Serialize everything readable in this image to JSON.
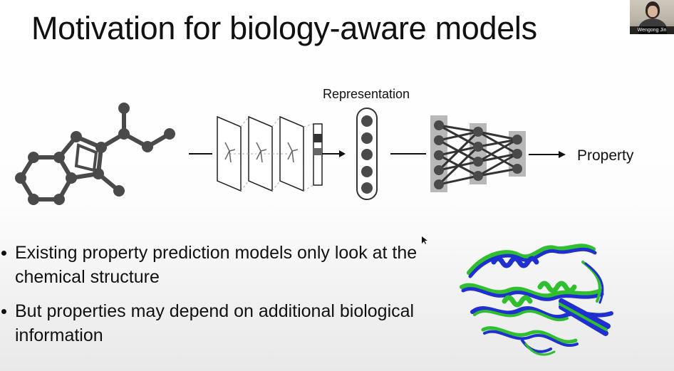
{
  "slide": {
    "title": "Motivation for biology-aware models",
    "representation_label": "Representation",
    "property_label": "Property",
    "bullets": [
      "Existing property prediction models only look at the chemical structure",
      "But properties may depend on additional biological information"
    ]
  },
  "participant": {
    "name": "Wengong Jin"
  },
  "colors": {
    "node": "#4a4a4a",
    "layer_box": "#b8b8b8",
    "protein_green": "#2fbf2f",
    "protein_blue": "#1f2fd0"
  },
  "icons": [
    "molecule-graph",
    "graph-conv-layers",
    "representation-vector",
    "neural-network",
    "protein-structure",
    "mouse-cursor"
  ]
}
